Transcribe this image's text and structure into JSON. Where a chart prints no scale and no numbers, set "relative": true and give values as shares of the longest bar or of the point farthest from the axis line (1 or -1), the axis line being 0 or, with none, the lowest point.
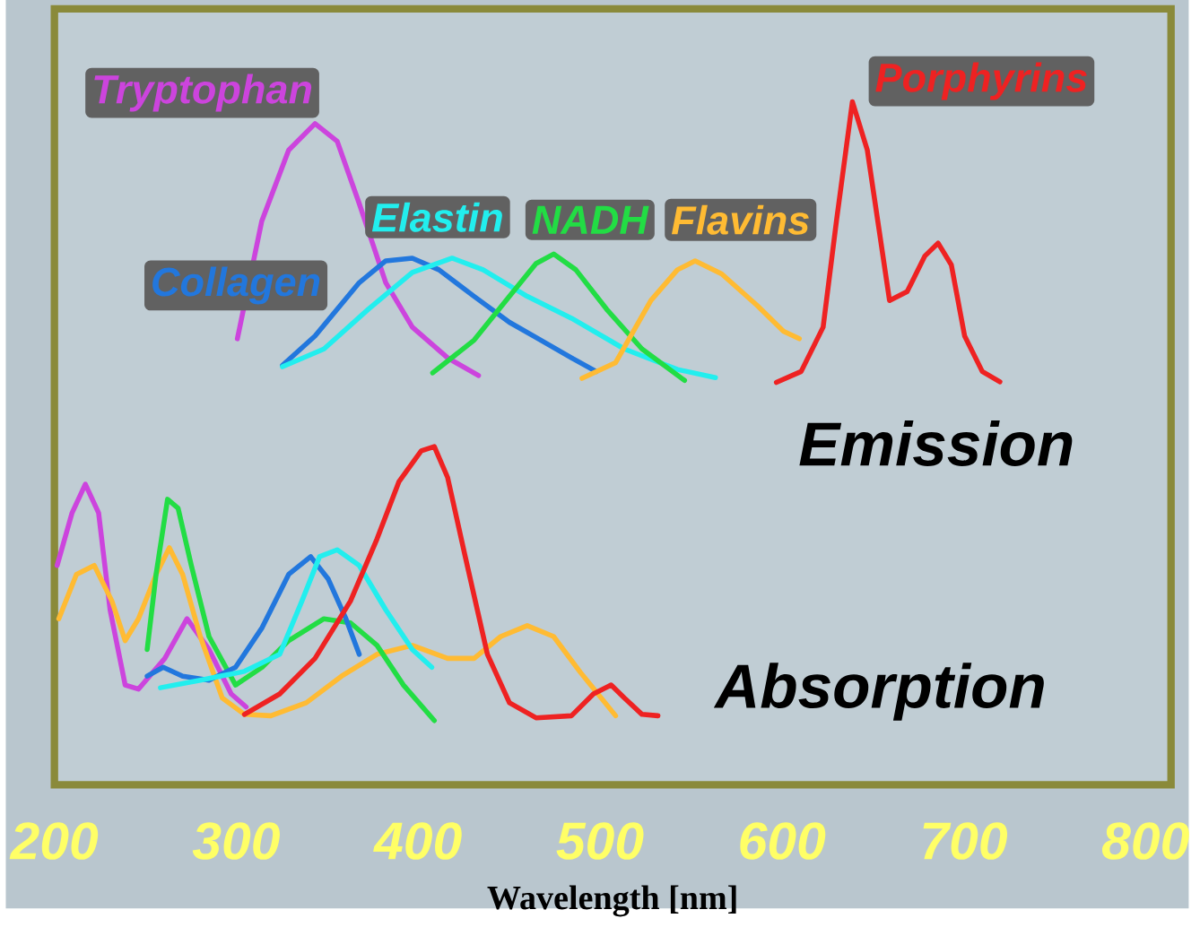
{
  "chart_data": {
    "type": "line",
    "relative": true,
    "xlabel": "Wavelength [nm]",
    "xlim": [
      200,
      814
    ],
    "xticks": [
      200,
      300,
      400,
      500,
      600,
      700,
      800
    ],
    "annotations": [
      "Emission",
      "Absorption"
    ],
    "series": [
      {
        "name": "Tryptophan",
        "color": "#cc44dd",
        "x": [
          300.6,
          314,
          328.8,
          343.3,
          355.5,
          367.6,
          382.2,
          396.8,
          416.2,
          433.2
        ],
        "values": [
          0.653,
          0.825,
          0.929,
          0.968,
          0.942,
          0.851,
          0.735,
          0.67,
          0.625,
          0.599
        ]
      },
      {
        "name": "Collagen",
        "color": "#2277dd",
        "x": [
          325.4,
          343.3,
          367.6,
          382.2,
          396.8,
          411.4,
          430.8,
          450.2,
          464.8,
          484.3,
          497.9
        ],
        "values": [
          0.614,
          0.657,
          0.735,
          0.767,
          0.771,
          0.754,
          0.715,
          0.677,
          0.655,
          0.625,
          0.605
        ]
      },
      {
        "name": "Elastin",
        "color": "#22eeee",
        "x": [
          325.4,
          348.2,
          372.5,
          396.8,
          418.7,
          435.7,
          460,
          484.3,
          513.4,
          542.6,
          563.5
        ],
        "values": [
          0.612,
          0.638,
          0.696,
          0.75,
          0.771,
          0.754,
          0.715,
          0.683,
          0.638,
          0.608,
          0.596
        ]
      },
      {
        "name": "NADH",
        "color": "#22dd44",
        "x": [
          408,
          430.8,
          450.2,
          464.8,
          474.5,
          486.7,
          503.7,
          523.1,
          546.5
        ],
        "values": [
          0.603,
          0.651,
          0.715,
          0.763,
          0.777,
          0.754,
          0.696,
          0.638,
          0.592
        ]
      },
      {
        "name": "Flavins",
        "color": "#ffbb33",
        "x": [
          490.1,
          508.6,
          528,
          542.6,
          552.3,
          566.9,
          586.3,
          600.9,
          609.6
        ],
        "values": [
          0.595,
          0.618,
          0.709,
          0.754,
          0.767,
          0.748,
          0.702,
          0.664,
          0.653
        ]
      },
      {
        "name": "Porphyrins",
        "color": "#ee2222",
        "x": [
          597,
          610.6,
          622.7,
          630,
          638.8,
          647,
          659.2,
          668.9,
          678.6,
          685.9,
          693.2,
          700.5,
          710.2,
          719.9
        ],
        "values": [
          0.589,
          0.605,
          0.67,
          0.825,
          1.0,
          0.929,
          0.709,
          0.722,
          0.774,
          0.793,
          0.761,
          0.657,
          0.605,
          0.59
        ]
      },
      {
        "color": "#cc44dd",
        "x": [
          201.5,
          209.7,
          217,
          224.3,
          230.6,
          238.9,
          246.2,
          260.7,
          272.9,
          285,
          297.2,
          305.4
        ],
        "values": [
          0.321,
          0.398,
          0.44,
          0.398,
          0.256,
          0.146,
          0.14,
          0.185,
          0.243,
          0.198,
          0.133,
          0.114
        ]
      },
      {
        "color": "#ffbb33",
        "x": [
          202.4,
          212.1,
          221.9,
          231.6,
          238.9,
          246.2,
          255.9,
          263.2,
          270.5,
          280.2,
          292.3,
          304.5,
          319,
          338.5,
          357.9,
          377.4,
          396.8,
          416.2,
          430.8,
          445.4,
          460,
          474.5,
          489.1,
          508.6
        ],
        "values": [
          0.243,
          0.308,
          0.321,
          0.269,
          0.211,
          0.243,
          0.308,
          0.347,
          0.308,
          0.217,
          0.127,
          0.103,
          0.101,
          0.12,
          0.159,
          0.191,
          0.204,
          0.185,
          0.185,
          0.217,
          0.233,
          0.217,
          0.165,
          0.101
        ]
      },
      {
        "color": "#22dd44",
        "x": [
          251,
          255.9,
          262.2,
          268,
          275.3,
          285,
          299.6,
          314.2,
          328.8,
          348.2,
          362.8,
          377.4,
          391.9,
          408.9
        ],
        "values": [
          0.198,
          0.308,
          0.418,
          0.405,
          0.321,
          0.217,
          0.146,
          0.172,
          0.211,
          0.243,
          0.237,
          0.204,
          0.146,
          0.094
        ]
      },
      {
        "color": "#2277dd",
        "x": [
          251,
          259.8,
          270.5,
          285,
          299.6,
          314.2,
          328.8,
          340.9,
          350.6,
          360.3,
          367.6
        ],
        "values": [
          0.159,
          0.172,
          0.159,
          0.153,
          0.172,
          0.23,
          0.308,
          0.334,
          0.301,
          0.243,
          0.191
        ]
      },
      {
        "color": "#22eeee",
        "x": [
          258.3,
          280.2,
          304.5,
          323.9,
          336.1,
          345.8,
          355.5,
          367.6,
          382.2,
          396.8,
          407.5
        ],
        "values": [
          0.142,
          0.153,
          0.166,
          0.191,
          0.269,
          0.334,
          0.344,
          0.321,
          0.256,
          0.198,
          0.172
        ]
      },
      {
        "color": "#ee2222",
        "x": [
          304.5,
          323.9,
          343.3,
          362.8,
          377.4,
          389.5,
          401.7,
          408.9,
          416.2,
          425.9,
          438.1,
          450.2,
          464.8,
          484.3,
          496.4,
          506.1,
          513.4,
          523.1,
          531.9
        ],
        "values": [
          0.103,
          0.133,
          0.185,
          0.269,
          0.36,
          0.444,
          0.489,
          0.495,
          0.45,
          0.334,
          0.191,
          0.12,
          0.098,
          0.101,
          0.133,
          0.146,
          0.127,
          0.103,
          0.101
        ]
      }
    ]
  }
}
